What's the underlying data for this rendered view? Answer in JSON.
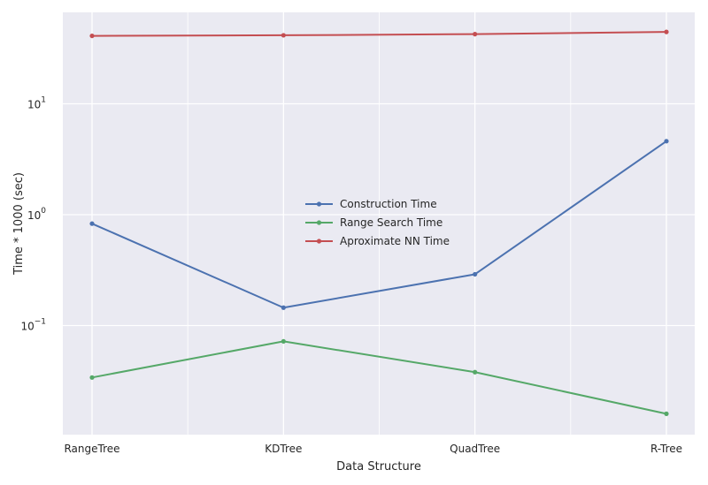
{
  "chart_data": {
    "type": "line",
    "title": "",
    "xlabel": "Data Structure",
    "ylabel": "Time * 1000 (sec)",
    "yscale": "log",
    "ylim": [
      0.012,
      60
    ],
    "grid": true,
    "legend_position": "center",
    "categories": [
      "RangeTree",
      "KDTree",
      "QuadTree",
      "R-Tree"
    ],
    "y_ticks": [
      {
        "value": 0.1,
        "base": "10",
        "exp": "−1"
      },
      {
        "value": 1,
        "base": "10",
        "exp": "0"
      },
      {
        "value": 10,
        "base": "10",
        "exp": "1"
      }
    ],
    "series": [
      {
        "name": "Construction Time",
        "color": "#4c72b0",
        "values": [
          0.83,
          0.145,
          0.29,
          4.6
        ]
      },
      {
        "name": "Range Search Time",
        "color": "#55a868",
        "values": [
          0.034,
          0.072,
          0.038,
          0.016
        ]
      },
      {
        "name": "Aproximate NN Time",
        "color": "#c44e52",
        "values": [
          41,
          41.5,
          42.5,
          44.5
        ]
      }
    ]
  }
}
